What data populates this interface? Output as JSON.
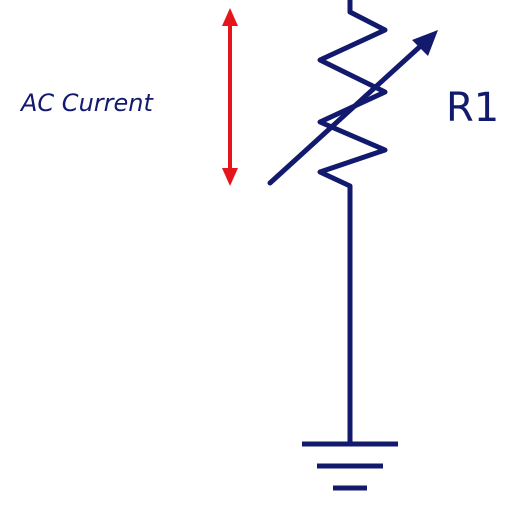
{
  "diagram": {
    "current_label": "AC Current",
    "resistor_label": "R1",
    "colors": {
      "wire": "#121a6e",
      "arrow": "#e4161b",
      "text": "#121a6e",
      "background": "#ffffff"
    },
    "components": {
      "resistor": "variable-resistor",
      "ground": "ground-symbol",
      "current_indicator": "double-headed-arrow"
    }
  }
}
